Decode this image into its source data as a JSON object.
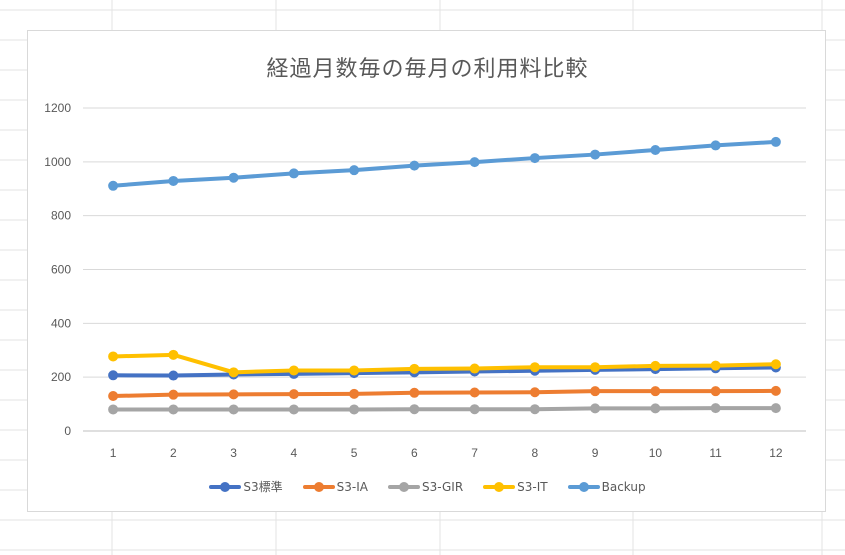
{
  "chart_data": {
    "type": "line",
    "title": "経過月数毎の毎月の利用料比較",
    "xlabel": "",
    "ylabel": "",
    "categories": [
      "1",
      "2",
      "3",
      "4",
      "5",
      "6",
      "7",
      "8",
      "9",
      "10",
      "11",
      "12"
    ],
    "ylim": [
      0,
      1200
    ],
    "yticks": [
      "0",
      "200",
      "400",
      "600",
      "800",
      "1000",
      "1200"
    ],
    "grid": "horizontal",
    "legend_position": "bottom",
    "series": [
      {
        "name": "S3標準",
        "color": "#4472c4",
        "values": [
          207,
          206,
          210,
          212,
          215,
          218,
          221,
          224,
          227,
          230,
          233,
          236
        ]
      },
      {
        "name": "S3-IA",
        "color": "#ed7d31",
        "values": [
          130,
          135,
          136,
          137,
          138,
          142,
          143,
          144,
          148,
          148,
          148,
          149
        ]
      },
      {
        "name": "S3-GIR",
        "color": "#a5a5a5",
        "values": [
          80,
          80,
          80,
          80,
          80,
          81,
          81,
          81,
          84,
          84,
          85,
          85
        ]
      },
      {
        "name": "S3-IT",
        "color": "#ffc000",
        "values": [
          277,
          283,
          218,
          225,
          225,
          231,
          232,
          237,
          237,
          242,
          243,
          248
        ]
      },
      {
        "name": "Backup",
        "color": "#5b9bd5",
        "values": [
          911,
          929,
          941,
          957,
          969,
          986,
          999,
          1014,
          1027,
          1044,
          1061,
          1074
        ]
      }
    ]
  }
}
